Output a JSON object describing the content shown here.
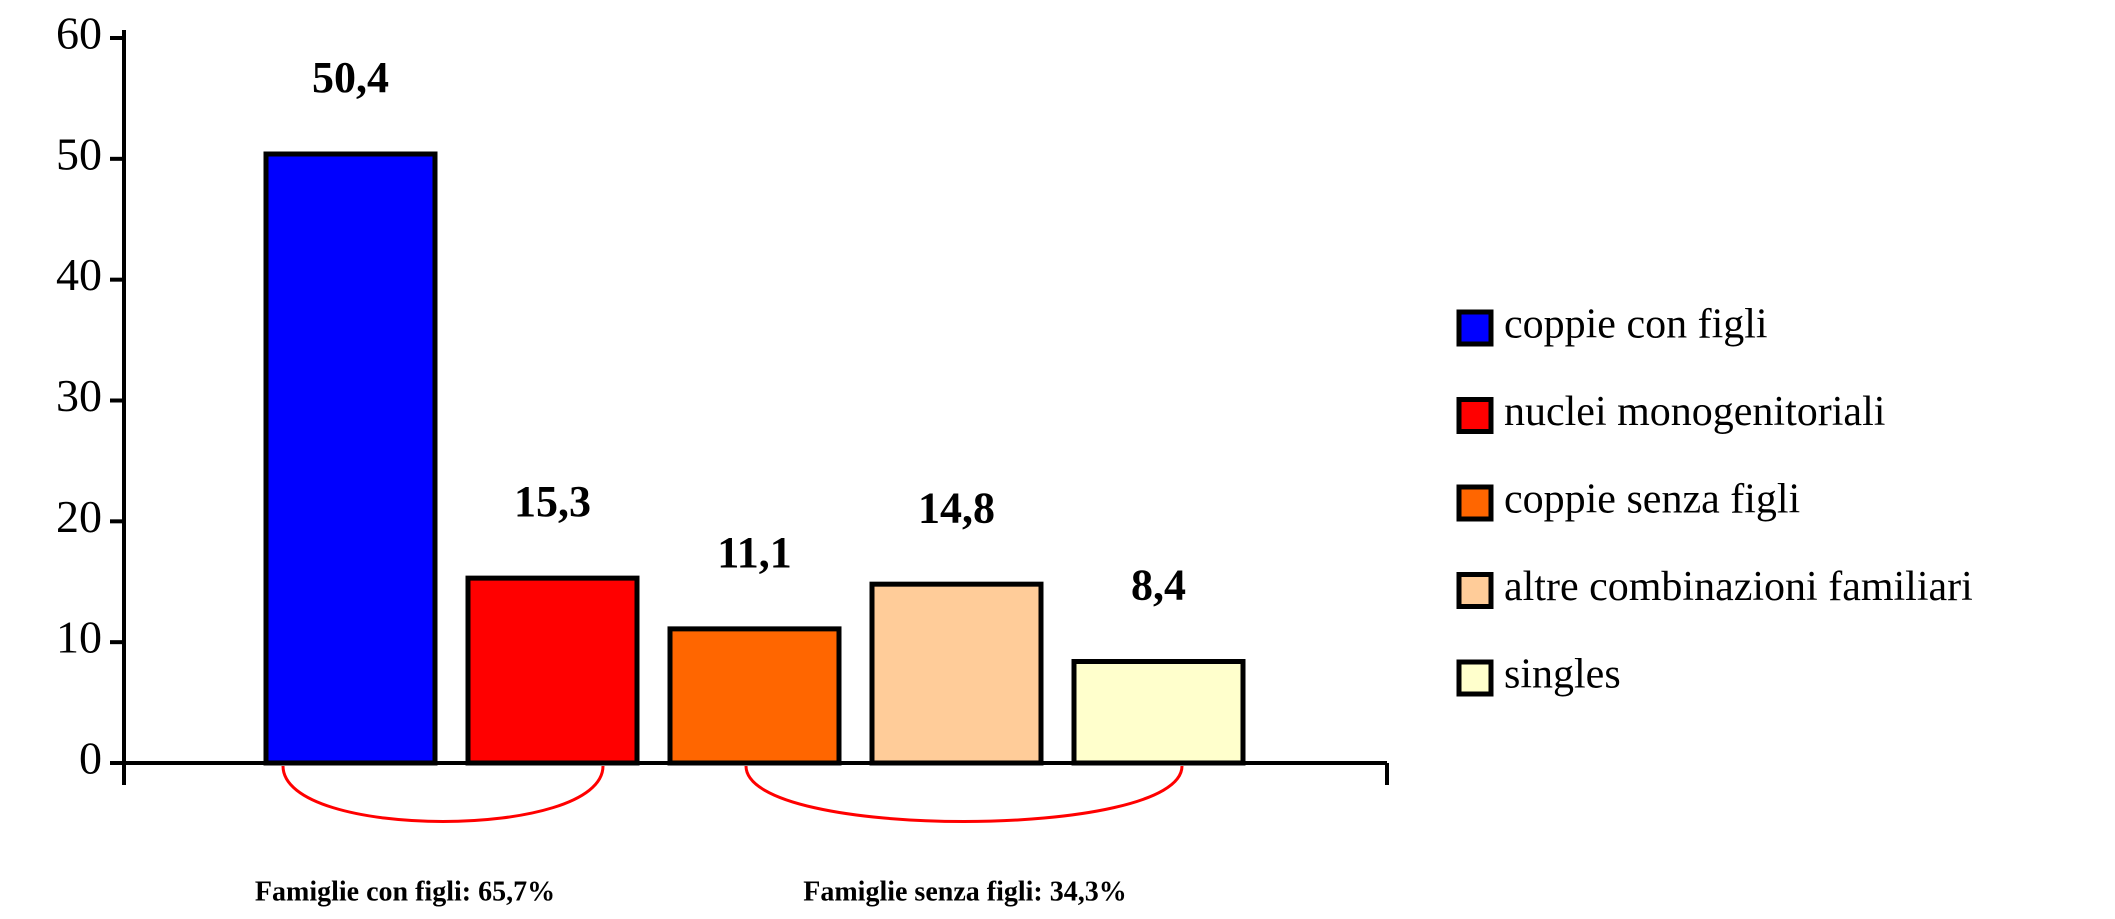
{
  "chart_data": {
    "type": "bar",
    "series": [
      {
        "name": "coppie con figli",
        "color": "#0000ff",
        "values": [
          50.4
        ],
        "value_labels": [
          "50,4"
        ]
      },
      {
        "name": "nuclei monogenitoriali",
        "color": "#ff0000",
        "values": [
          15.3
        ],
        "value_labels": [
          "15,3"
        ]
      },
      {
        "name": "coppie senza figli",
        "color": "#ff6600",
        "values": [
          11.1
        ],
        "value_labels": [
          "11,1"
        ]
      },
      {
        "name": "altre combinazioni familiari",
        "color": "#ffcc99",
        "values": [
          14.8
        ],
        "value_labels": [
          "14,8"
        ]
      },
      {
        "name": "singles",
        "color": "#ffffcc",
        "values": [
          8.4
        ],
        "value_labels": [
          "8,4"
        ]
      }
    ],
    "ylim": [
      0,
      60
    ],
    "yticks": [
      0,
      10,
      20,
      30,
      40,
      50,
      60
    ],
    "annotations": [
      "Famiglie con figli: 65,7%",
      "Famiglie senza figli: 34,3%"
    ]
  }
}
